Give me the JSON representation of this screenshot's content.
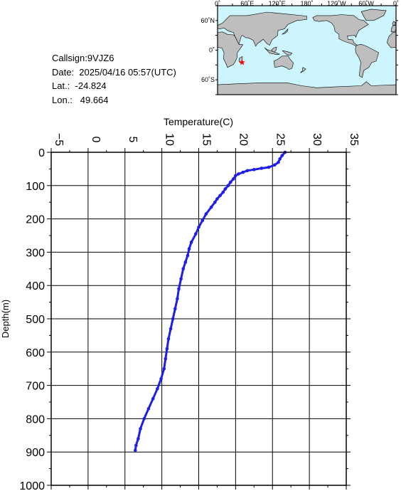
{
  "info": {
    "callsign": "Callsign:9VJZ6",
    "date": "Date:  2025/04/16 05:57(UTC)",
    "lat": "Lat.:  -24.824",
    "lon": "Lon.:   49.664"
  },
  "map": {
    "lon_labels": [
      "0˚",
      "60˚E",
      "120˚E",
      "180˚",
      "120˚W",
      "60˚W",
      "0˚"
    ],
    "lat_labels": [
      "60˚N",
      "0˚",
      "60˚S"
    ],
    "ocean_color": "#cdf5ff",
    "land_color": "#bebebe",
    "marker": {
      "lon": 49.664,
      "lat": -24.824,
      "color": "#ff0000",
      "icon": "star-icon"
    }
  },
  "chart_data": {
    "type": "line",
    "title": "",
    "xlabel": "Temperature(C)",
    "ylabel": "Depth(m)",
    "xlim": [
      -5,
      35
    ],
    "ylim": [
      0,
      1000
    ],
    "y_inverted": true,
    "x_ticks": [
      "-5",
      "0",
      "5",
      "10",
      "15",
      "20",
      "25",
      "30",
      "35"
    ],
    "y_ticks": [
      "0",
      "100",
      "200",
      "300",
      "400",
      "500",
      "600",
      "700",
      "800",
      "900",
      "1000"
    ],
    "grid": true,
    "line_color": "#1e1ee6",
    "series": [
      {
        "x": [
          26.7,
          26.3,
          26.0,
          25.8,
          25.3,
          24.5,
          23.5,
          22.5,
          21.6,
          21.0,
          20.4,
          20.0,
          19.7,
          19.3,
          19.0,
          18.6,
          18.3,
          17.9,
          17.5,
          17.2,
          16.7,
          16.0,
          15.5,
          15.0,
          14.6,
          14.0,
          13.7,
          13.5,
          13.2,
          12.9,
          12.6,
          12.3,
          12.1,
          11.8,
          11.5,
          11.2,
          10.9,
          10.7,
          10.5,
          10.3,
          9.9,
          9.4,
          8.8,
          8.2,
          7.6,
          7.1,
          6.8,
          6.5,
          6.4
        ],
        "y": [
          0,
          10,
          20,
          30,
          38,
          45,
          48,
          52,
          55,
          60,
          65,
          70,
          80,
          90,
          100,
          110,
          120,
          130,
          140,
          150,
          165,
          185,
          205,
          225,
          245,
          270,
          290,
          310,
          330,
          350,
          380,
          410,
          440,
          470,
          500,
          530,
          560,
          590,
          620,
          650,
          680,
          710,
          740,
          770,
          800,
          830,
          860,
          880,
          895
        ]
      }
    ]
  }
}
